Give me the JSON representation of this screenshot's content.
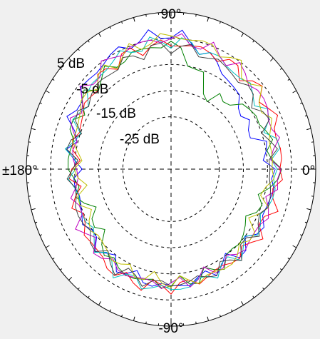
{
  "chart_data": {
    "type": "polar-line",
    "title": "",
    "theta_unit": "degrees",
    "r_unit": "dB",
    "r_range": [
      -45,
      15
    ],
    "angle_labels": [
      {
        "angle": 90,
        "text": "90°"
      },
      {
        "angle": 0,
        "text": "0°"
      },
      {
        "angle": -90,
        "text": "-90°"
      },
      {
        "angle": 180,
        "text": "±180°"
      }
    ],
    "ring_labels": [
      {
        "value": 5,
        "text": "5 dB"
      },
      {
        "value": -5,
        "text": "-5 dB"
      },
      {
        "value": -15,
        "text": "-15 dB"
      },
      {
        "value": -25,
        "text": "-25 dB"
      }
    ],
    "grid": true,
    "colors": [
      "#0000ff",
      "#008000",
      "#ff0000",
      "#00bfbf",
      "#bf00bf",
      "#bfbf00",
      "#404040"
    ],
    "series": [
      {
        "color": "#0000ff",
        "theta": [
          0,
          30,
          60,
          90,
          120,
          150,
          180,
          210,
          240,
          270,
          300,
          330
        ],
        "r": [
          -3,
          -10,
          -2,
          7,
          5,
          1,
          -6,
          -4,
          -2,
          0,
          -3,
          -2
        ]
      },
      {
        "color": "#008000",
        "theta": [
          0,
          30,
          60,
          90,
          120,
          150,
          180,
          210,
          240,
          270,
          300,
          330
        ],
        "r": [
          -2,
          -4,
          -14,
          3,
          1,
          -1,
          -3,
          -9,
          -1,
          -1,
          -3,
          -8
        ]
      },
      {
        "color": "#ff0000",
        "theta": [
          0,
          30,
          60,
          90,
          120,
          150,
          180,
          210,
          240,
          270,
          300,
          330
        ],
        "r": [
          0,
          2,
          2,
          3,
          2,
          -3,
          -5,
          -3,
          1,
          0,
          -2,
          -1
        ]
      },
      {
        "color": "#00bfbf",
        "theta": [
          0,
          30,
          60,
          90,
          120,
          150,
          180,
          210,
          240,
          270,
          300,
          330
        ],
        "r": [
          -1,
          -1,
          1,
          4,
          3,
          -2,
          -4,
          -5,
          0,
          1,
          -2,
          -3
        ]
      },
      {
        "color": "#bf00bf",
        "theta": [
          0,
          30,
          60,
          90,
          120,
          150,
          180,
          210,
          240,
          270,
          300,
          330
        ],
        "r": [
          -2,
          1,
          3,
          5,
          4,
          0,
          -6,
          -2,
          -1,
          -1,
          -3,
          -2
        ]
      },
      {
        "color": "#bfbf00",
        "theta": [
          0,
          30,
          60,
          90,
          120,
          150,
          180,
          210,
          240,
          270,
          300,
          330
        ],
        "r": [
          -4,
          0,
          4,
          6,
          2,
          -1,
          -7,
          -6,
          -3,
          -2,
          -1,
          -5
        ]
      },
      {
        "color": "#404040",
        "theta": [
          0,
          30,
          60,
          90,
          120,
          150,
          180,
          210,
          240,
          270,
          300,
          330
        ],
        "r": [
          -3,
          -2,
          0,
          2,
          0,
          -2,
          -4,
          -3,
          -1,
          -1,
          -2,
          -3
        ]
      }
    ]
  }
}
